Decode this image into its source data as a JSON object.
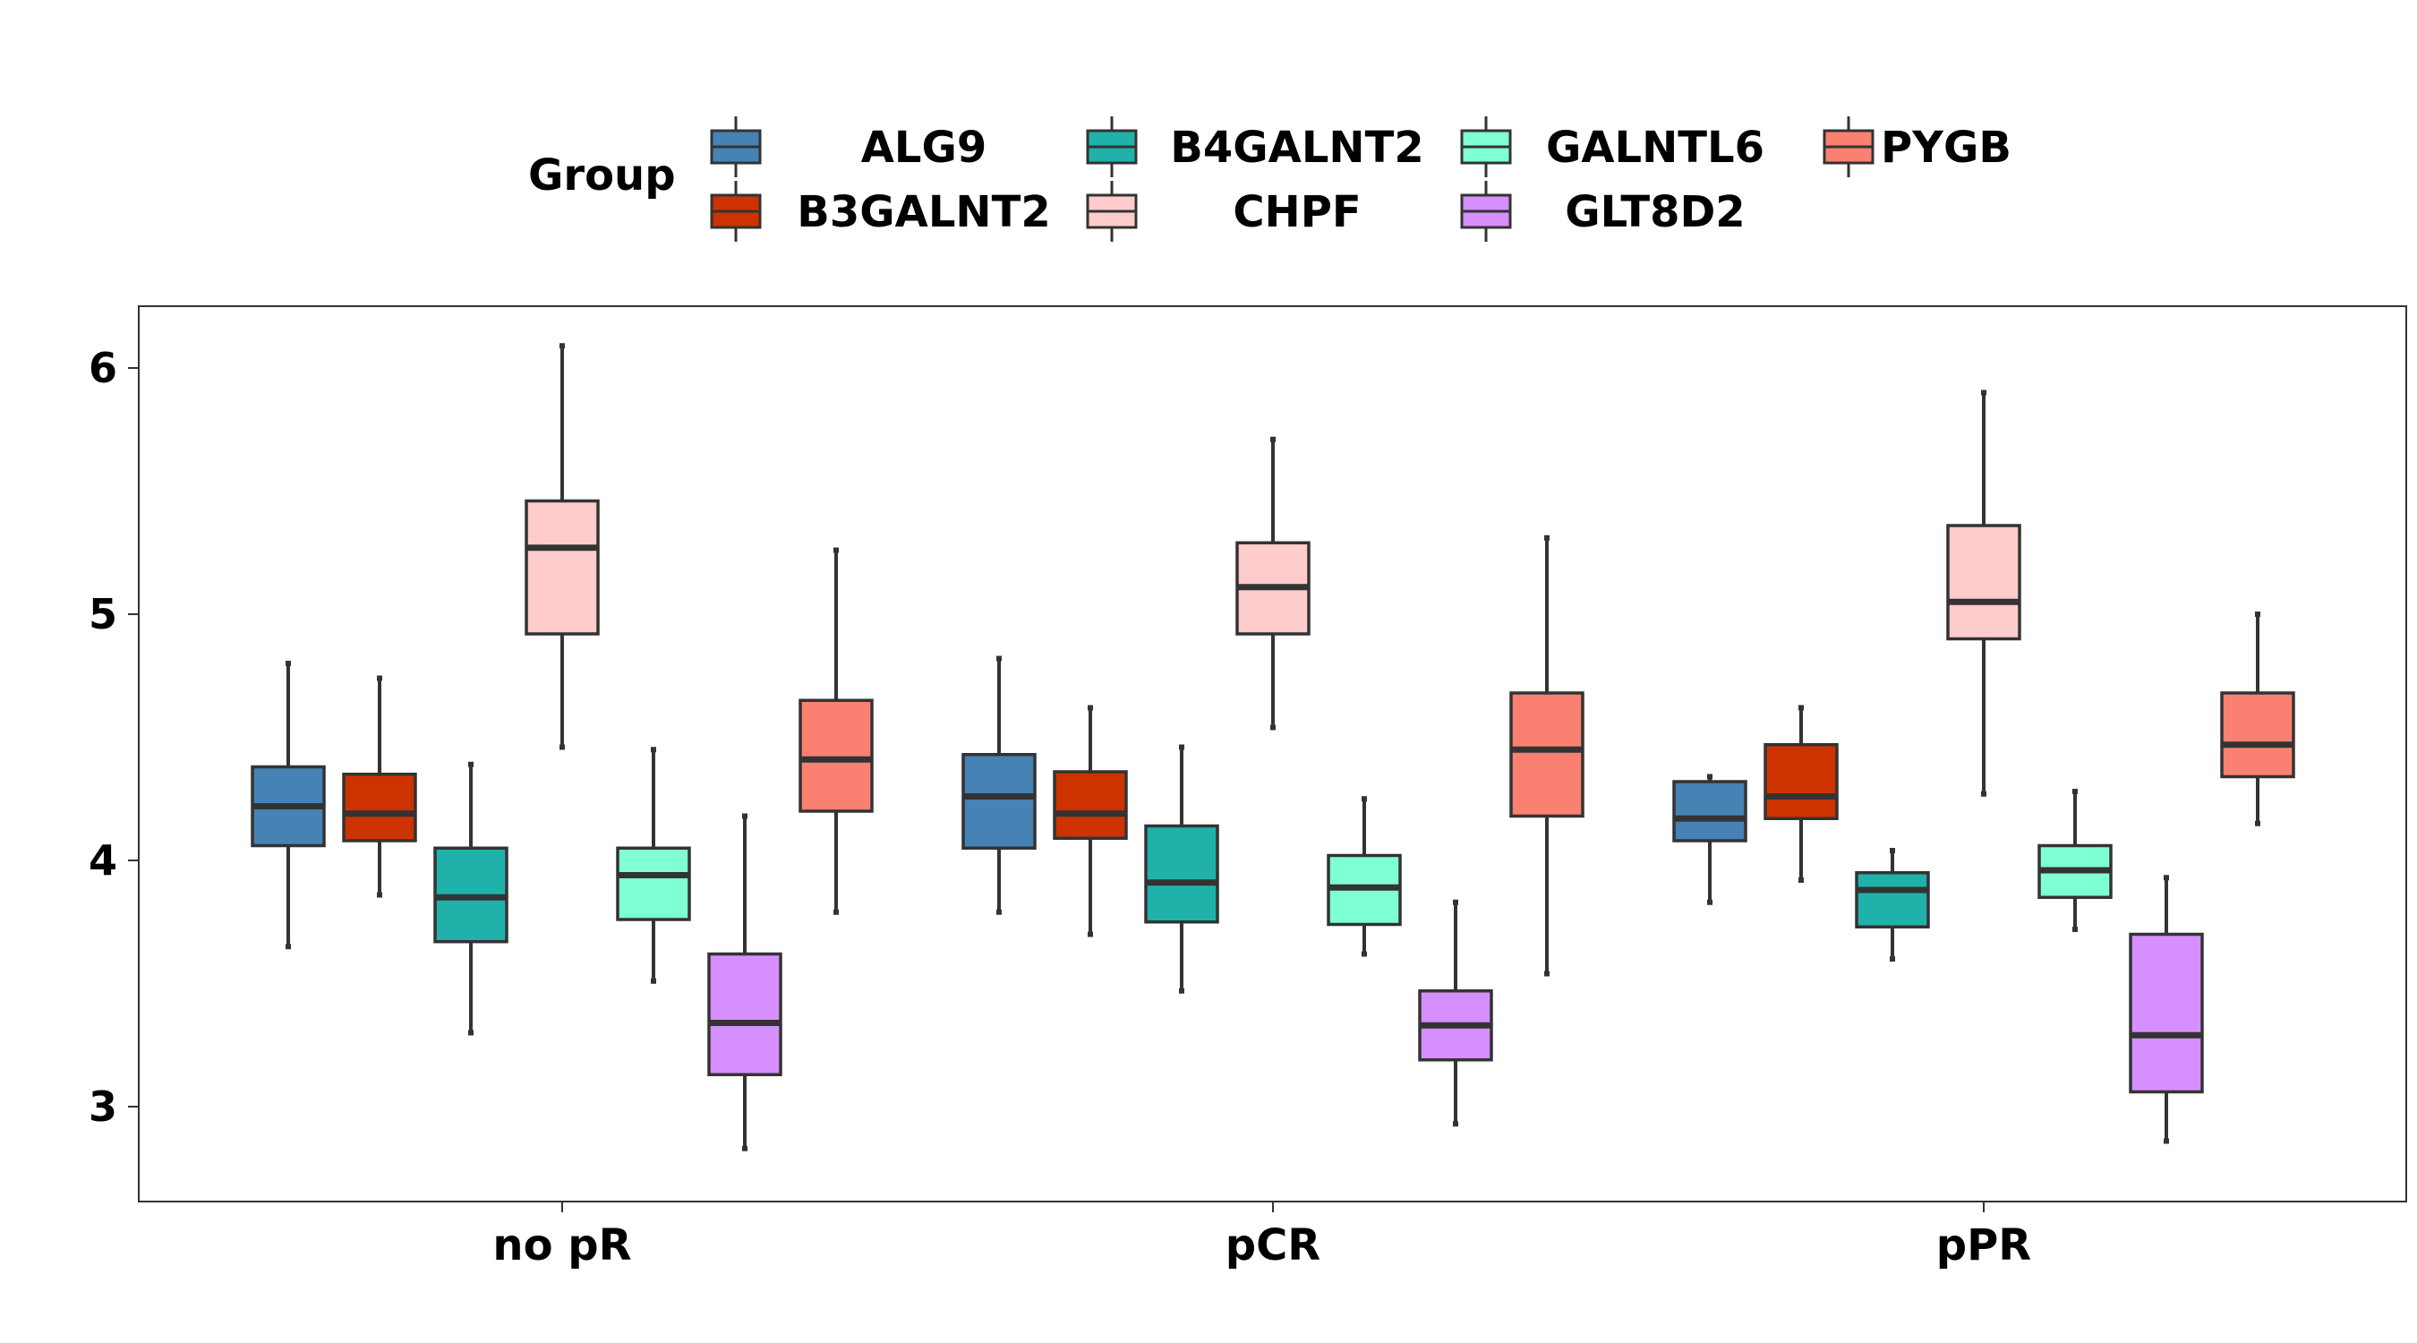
{
  "chart_data": {
    "type": "boxplot",
    "title": "",
    "xlabel": "",
    "ylabel": "",
    "ylim": [
      2.6,
      6.25
    ],
    "yticks": [
      3,
      4,
      5,
      6
    ],
    "grid": false,
    "legend": {
      "title": "Group",
      "placement": "top"
    },
    "categories": [
      "no pR",
      "pCR",
      "pPR"
    ],
    "series": [
      {
        "name": "ALG9",
        "color": "#4682B4",
        "boxes": [
          {
            "min": 3.65,
            "q1": 4.06,
            "median": 4.22,
            "q3": 4.38,
            "max": 4.8
          },
          {
            "min": 3.79,
            "q1": 4.05,
            "median": 4.26,
            "q3": 4.43,
            "max": 4.82
          },
          {
            "min": 3.83,
            "q1": 4.08,
            "median": 4.17,
            "q3": 4.32,
            "max": 4.34
          }
        ]
      },
      {
        "name": "B3GALNT2",
        "color": "#CD3300",
        "boxes": [
          {
            "min": 3.86,
            "q1": 4.08,
            "median": 4.19,
            "q3": 4.35,
            "max": 4.74
          },
          {
            "min": 3.7,
            "q1": 4.09,
            "median": 4.19,
            "q3": 4.36,
            "max": 4.62
          },
          {
            "min": 3.92,
            "q1": 4.17,
            "median": 4.26,
            "q3": 4.47,
            "max": 4.62
          }
        ]
      },
      {
        "name": "B4GALNT2",
        "color": "#20B2AA",
        "boxes": [
          {
            "min": 3.3,
            "q1": 3.67,
            "median": 3.85,
            "q3": 4.05,
            "max": 4.39
          },
          {
            "min": 3.47,
            "q1": 3.75,
            "median": 3.91,
            "q3": 4.14,
            "max": 4.46
          },
          {
            "min": 3.6,
            "q1": 3.73,
            "median": 3.88,
            "q3": 3.95,
            "max": 4.04
          }
        ]
      },
      {
        "name": "CHPF",
        "color": "#FFCCCC",
        "boxes": [
          {
            "min": 4.46,
            "q1": 4.92,
            "median": 5.27,
            "q3": 5.46,
            "max": 6.09
          },
          {
            "min": 4.54,
            "q1": 4.92,
            "median": 5.11,
            "q3": 5.29,
            "max": 5.71
          },
          {
            "min": 4.27,
            "q1": 4.9,
            "median": 5.05,
            "q3": 5.36,
            "max": 5.9
          }
        ]
      },
      {
        "name": "GALNTL6",
        "color": "#7FFFD4",
        "boxes": [
          {
            "min": 3.51,
            "q1": 3.76,
            "median": 3.94,
            "q3": 4.05,
            "max": 4.45
          },
          {
            "min": 3.62,
            "q1": 3.74,
            "median": 3.89,
            "q3": 4.02,
            "max": 4.25
          },
          {
            "min": 3.72,
            "q1": 3.85,
            "median": 3.96,
            "q3": 4.06,
            "max": 4.28
          }
        ]
      },
      {
        "name": "GLT8D2",
        "color": "#D68FFF",
        "boxes": [
          {
            "min": 2.83,
            "q1": 3.13,
            "median": 3.34,
            "q3": 3.62,
            "max": 4.18
          },
          {
            "min": 2.93,
            "q1": 3.19,
            "median": 3.33,
            "q3": 3.47,
            "max": 3.83
          },
          {
            "min": 2.86,
            "q1": 3.06,
            "median": 3.29,
            "q3": 3.7,
            "max": 3.93
          }
        ]
      },
      {
        "name": "PYGB",
        "color": "#FA8072",
        "boxes": [
          {
            "min": 3.79,
            "q1": 4.2,
            "median": 4.41,
            "q3": 4.65,
            "max": 5.26
          },
          {
            "min": 3.54,
            "q1": 4.18,
            "median": 4.45,
            "q3": 4.68,
            "max": 5.31
          },
          {
            "min": 4.15,
            "q1": 4.34,
            "median": 4.47,
            "q3": 4.68,
            "max": 5.0
          }
        ]
      }
    ]
  }
}
